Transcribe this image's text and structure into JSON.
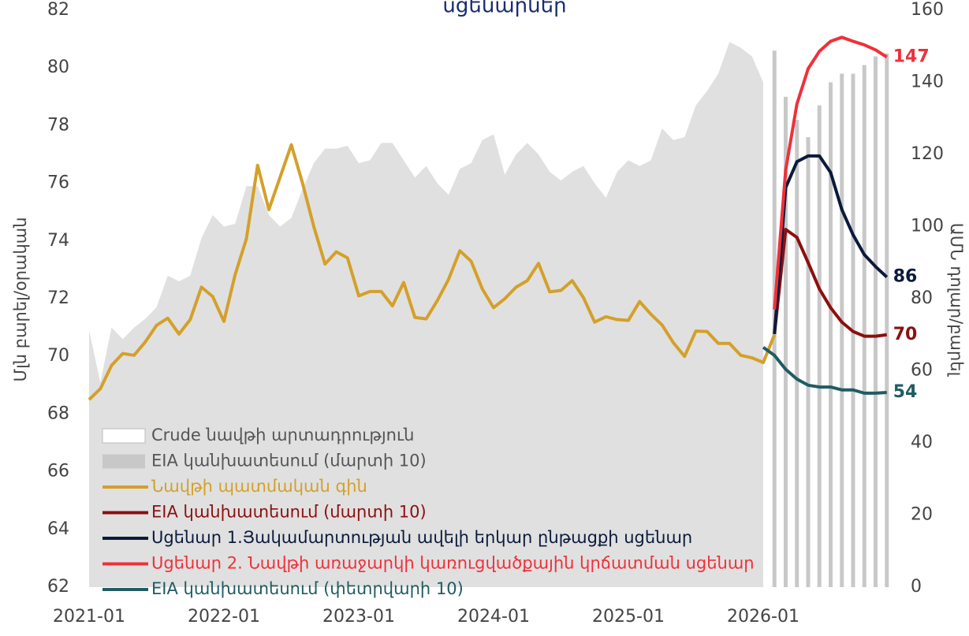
{
  "chart_data": {
    "type": "line",
    "title": "սցենարներ",
    "ylabel": "Մլն բարել/օրական",
    "y2label": "ԱՄՆ դոլար/բարել",
    "legend": "lower left",
    "categories": [
      "2021-01",
      null,
      null,
      null,
      null,
      null,
      null,
      null,
      null,
      null,
      null,
      null,
      "2022-01",
      null,
      null,
      null,
      null,
      null,
      null,
      null,
      null,
      null,
      null,
      null,
      "2023-01",
      null,
      null,
      null,
      null,
      null,
      null,
      null,
      null,
      null,
      null,
      null,
      "2024-01",
      null,
      null,
      null,
      null,
      null,
      null,
      null,
      null,
      null,
      null,
      null,
      "2025-01",
      null,
      null,
      null,
      null,
      null,
      null,
      null,
      null,
      null,
      null,
      null,
      "2026-01",
      null,
      null,
      null,
      null,
      null,
      null,
      null,
      null,
      null,
      null,
      null
    ],
    "ylim": [
      62,
      82
    ],
    "yticks": [
      62,
      64,
      66,
      68,
      70,
      72,
      74,
      76,
      78,
      80,
      82
    ],
    "y2lim": [
      0,
      160
    ],
    "y2ticks": [
      0,
      20,
      40,
      60,
      80,
      100,
      120,
      140,
      160
    ],
    "series": [
      {
        "name": "Crude նավթի արտադրություն",
        "type": "area",
        "color": "#e0e0e0",
        "values": [
          70.9,
          69.1,
          71.0,
          70.6,
          71.0,
          71.3,
          71.7,
          72.8,
          72.6,
          72.8,
          74.1,
          74.9,
          74.5,
          74.6,
          75.9,
          75.9,
          74.9,
          74.5,
          74.8,
          75.8,
          76.7,
          77.2,
          77.2,
          77.3,
          76.7,
          76.8,
          77.4,
          77.4,
          76.8,
          76.2,
          76.6,
          76.0,
          75.6,
          76.5,
          76.7,
          77.5,
          77.7,
          76.3,
          77.0,
          77.4,
          77.0,
          76.4,
          76.1,
          76.4,
          76.6,
          76.0,
          75.5,
          76.4,
          76.8,
          76.6,
          76.8,
          77.9,
          77.5,
          77.6,
          78.7,
          79.2,
          79.8,
          80.9,
          80.7,
          80.4,
          79.5,
          null,
          null,
          null,
          null,
          null,
          null,
          null,
          null,
          null,
          null,
          null
        ]
      },
      {
        "name": "EIA կանխատեսում (մարտի 10)",
        "type": "bar",
        "color": "#c8c8c8",
        "values": [
          null,
          null,
          null,
          null,
          null,
          null,
          null,
          null,
          null,
          null,
          null,
          null,
          null,
          null,
          null,
          null,
          null,
          null,
          null,
          null,
          null,
          null,
          null,
          null,
          null,
          null,
          null,
          null,
          null,
          null,
          null,
          null,
          null,
          null,
          null,
          null,
          null,
          null,
          null,
          null,
          null,
          null,
          null,
          null,
          null,
          null,
          null,
          null,
          null,
          null,
          null,
          null,
          null,
          null,
          null,
          null,
          null,
          null,
          null,
          null,
          null,
          80.6,
          79.0,
          78.2,
          77.6,
          78.7,
          79.5,
          79.8,
          79.8,
          80.1,
          80.4,
          80.5
        ]
      },
      {
        "name": "Նավթի պատմական գին",
        "type": "line",
        "axis": "y2",
        "color": "#d4a02a",
        "values": [
          52,
          55,
          61.5,
          64.8,
          64.3,
          68,
          72.6,
          74.6,
          70.2,
          74.2,
          83.2,
          80.6,
          73.7,
          86.7,
          96.6,
          117,
          104.7,
          113.7,
          122.7,
          112,
          100,
          89.6,
          93,
          91.3,
          80.8,
          82,
          82,
          78,
          84.5,
          74.8,
          74.4,
          79.5,
          85.4,
          93.3,
          90.4,
          82.7,
          77.5,
          80,
          83.2,
          85,
          89.8,
          81.9,
          82.3,
          85,
          80.3,
          73.5,
          75,
          74.2,
          74,
          79.2,
          75.7,
          72.7,
          67.8,
          64,
          71,
          70.9,
          67.6,
          67.6,
          64.3,
          63.6,
          62.3,
          70,
          null,
          null,
          null,
          null,
          null,
          null,
          null,
          null,
          null,
          null
        ]
      },
      {
        "name": "EIA կանխատեսում (մարտի 10)",
        "type": "line",
        "axis": "y2",
        "color": "#8b1010",
        "end_label": true,
        "values": [
          null,
          null,
          null,
          null,
          null,
          null,
          null,
          null,
          null,
          null,
          null,
          null,
          null,
          null,
          null,
          null,
          null,
          null,
          null,
          null,
          null,
          null,
          null,
          null,
          null,
          null,
          null,
          null,
          null,
          null,
          null,
          null,
          null,
          null,
          null,
          null,
          null,
          null,
          null,
          null,
          null,
          null,
          null,
          null,
          null,
          null,
          null,
          null,
          null,
          null,
          null,
          null,
          null,
          null,
          null,
          null,
          null,
          null,
          null,
          null,
          null,
          70.2,
          99.2,
          97,
          90,
          82.7,
          77.5,
          73.5,
          70.9,
          69.6,
          69.6,
          70
        ]
      },
      {
        "name": "Սցենար 1.Յակամարտության ավելի երկար ընթացքի սցենար",
        "type": "line",
        "axis": "y2",
        "color": "#0b1a3c",
        "end_label": true,
        "values": [
          null,
          null,
          null,
          null,
          null,
          null,
          null,
          null,
          null,
          null,
          null,
          null,
          null,
          null,
          null,
          null,
          null,
          null,
          null,
          null,
          null,
          null,
          null,
          null,
          null,
          null,
          null,
          null,
          null,
          null,
          null,
          null,
          null,
          null,
          null,
          null,
          null,
          null,
          null,
          null,
          null,
          null,
          null,
          null,
          null,
          null,
          null,
          null,
          null,
          null,
          null,
          null,
          null,
          null,
          null,
          null,
          null,
          null,
          null,
          null,
          null,
          70.2,
          110.8,
          118,
          119.6,
          119.6,
          115,
          104.7,
          97.7,
          92.2,
          88.9,
          86
        ]
      },
      {
        "name": "Սցենար 2. Նավթի առաջարկի կառուցվածքային կրճատման սցենար",
        "type": "line",
        "axis": "y2",
        "color": "#f0303a",
        "end_label": true,
        "values": [
          null,
          null,
          null,
          null,
          null,
          null,
          null,
          null,
          null,
          null,
          null,
          null,
          null,
          null,
          null,
          null,
          null,
          null,
          null,
          null,
          null,
          null,
          null,
          null,
          null,
          null,
          null,
          null,
          null,
          null,
          null,
          null,
          null,
          null,
          null,
          null,
          null,
          null,
          null,
          null,
          null,
          null,
          null,
          null,
          null,
          null,
          null,
          null,
          null,
          null,
          null,
          null,
          null,
          null,
          null,
          null,
          null,
          null,
          null,
          null,
          null,
          77,
          115.7,
          134,
          143.8,
          148.6,
          151.4,
          152.5,
          151.4,
          150.4,
          149,
          147
        ]
      },
      {
        "name": "EIA կանխատեսում (փետրվարի 10)",
        "type": "line",
        "axis": "y2",
        "color": "#1f5c63",
        "end_label": true,
        "values": [
          null,
          null,
          null,
          null,
          null,
          null,
          null,
          null,
          null,
          null,
          null,
          null,
          null,
          null,
          null,
          null,
          null,
          null,
          null,
          null,
          null,
          null,
          null,
          null,
          null,
          null,
          null,
          null,
          null,
          null,
          null,
          null,
          null,
          null,
          null,
          null,
          null,
          null,
          null,
          null,
          null,
          null,
          null,
          null,
          null,
          null,
          null,
          null,
          null,
          null,
          null,
          null,
          null,
          null,
          null,
          null,
          null,
          null,
          null,
          null,
          66.5,
          64.3,
          60.4,
          57.7,
          56,
          55.5,
          55.5,
          54.7,
          54.7,
          53.8,
          53.8,
          54
        ]
      }
    ]
  }
}
